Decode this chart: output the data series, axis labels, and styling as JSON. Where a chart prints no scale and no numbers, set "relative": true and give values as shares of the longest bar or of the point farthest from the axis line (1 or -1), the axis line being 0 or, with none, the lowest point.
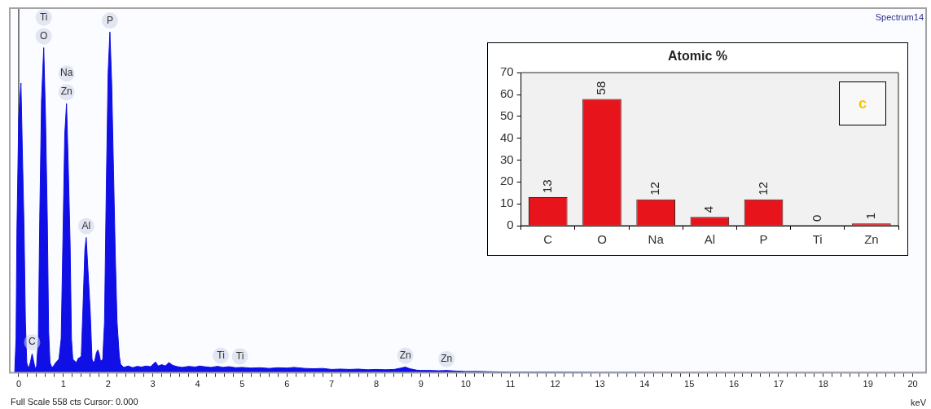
{
  "chart_data": [
    {
      "type": "area",
      "title": "Spectrum14",
      "xlabel": "keV",
      "relative": true,
      "tick_labels": "x",
      "x": [
        -0.09,
        -0.06,
        -0.04,
        0.0,
        0.05,
        0.09,
        0.12,
        0.15,
        0.18,
        0.22,
        0.26,
        0.3,
        0.34,
        0.37,
        0.4,
        0.44,
        0.47,
        0.51,
        0.56,
        0.6,
        0.64,
        0.67,
        0.7,
        0.74,
        0.78,
        0.83,
        0.87,
        0.9,
        0.95,
        0.99,
        1.03,
        1.07,
        1.11,
        1.15,
        1.18,
        1.21,
        1.25,
        1.29,
        1.33,
        1.37,
        1.4,
        1.44,
        1.48,
        1.51,
        1.55,
        1.6,
        1.64,
        1.67,
        1.7,
        1.74,
        1.77,
        1.8,
        1.83,
        1.86,
        1.88,
        1.92,
        1.96,
        2.0,
        2.04,
        2.08,
        2.12,
        2.16,
        2.2,
        2.25,
        2.28,
        2.35,
        2.45,
        2.55,
        2.65,
        2.75,
        2.85,
        2.95,
        3.06,
        3.12,
        3.2,
        3.28,
        3.36,
        3.45,
        3.55,
        3.66,
        3.8,
        3.95,
        4.05,
        4.15,
        4.3,
        4.45,
        4.57,
        4.7,
        4.85,
        5.0,
        5.19,
        5.4,
        5.6,
        5.8,
        6.0,
        6.16,
        6.4,
        6.6,
        6.8,
        7.0,
        7.2,
        7.4,
        7.6,
        7.8,
        8.0,
        8.2,
        8.4,
        8.55,
        8.65,
        8.75,
        8.9,
        9.0,
        9.2,
        9.4,
        9.57,
        9.8,
        10.0,
        10.3,
        10.6,
        11.0,
        11.3,
        12,
        13,
        14,
        15,
        16,
        17,
        18,
        19,
        20,
        20.3
      ],
      "series": [
        {
          "color": "#0f0fe6",
          "values": [
            0,
            0.1,
            0.42,
            0.75,
            0.85,
            0.6,
            0.42,
            0.15,
            0.03,
            0.012,
            0.03,
            0.056,
            0.03,
            0.012,
            0.02,
            0.1,
            0.45,
            0.8,
            0.954,
            0.75,
            0.45,
            0.12,
            0.03,
            0.016,
            0.02,
            0.03,
            0.036,
            0.04,
            0.1,
            0.4,
            0.7,
            0.79,
            0.6,
            0.38,
            0.1,
            0.04,
            0.035,
            0.03,
            0.042,
            0.045,
            0.05,
            0.2,
            0.36,
            0.397,
            0.3,
            0.18,
            0.04,
            0.03,
            0.035,
            0.06,
            0.067,
            0.055,
            0.035,
            0.036,
            0.04,
            0.15,
            0.55,
            0.88,
            1,
            0.85,
            0.6,
            0.35,
            0.15,
            0.05,
            0.025,
            0.016,
            0.02,
            0.015,
            0.019,
            0.017,
            0.02,
            0.018,
            0.032,
            0.02,
            0.024,
            0.02,
            0.03,
            0.022,
            0.018,
            0.016,
            0.019,
            0.017,
            0.02,
            0.018,
            0.016,
            0.019,
            0.016,
            0.018,
            0.015,
            0.016,
            0.014,
            0.015,
            0.013,
            0.015,
            0.014,
            0.016,
            0.013,
            0.012,
            0.013,
            0.01,
            0.011,
            0.01,
            0.011,
            0.009,
            0.01,
            0.009,
            0.01,
            0.014,
            0.017,
            0.012,
            0.008,
            0.007,
            0.007,
            0.006,
            0.007,
            0.005,
            0.004,
            0.004,
            0.003,
            0.002,
            0.002,
            0.002,
            0.0015,
            0.0015,
            0.0012,
            0.001,
            0.001,
            0.001,
            0.001,
            0.001,
            0.001
          ]
        }
      ],
      "xlim": [
        -0.2,
        20.3
      ],
      "xticks": [
        0,
        {
          "value": 0.2,
          "label": null
        },
        {
          "value": 0.4,
          "label": null
        },
        {
          "value": 0.6,
          "label": null
        },
        {
          "value": 0.8,
          "label": null
        },
        1,
        {
          "value": 1.2,
          "label": null
        },
        {
          "value": 1.4,
          "label": null
        },
        {
          "value": 1.6,
          "label": null
        },
        {
          "value": 1.8,
          "label": null
        },
        2,
        {
          "value": 2.2,
          "label": null
        },
        {
          "value": 2.4,
          "label": null
        },
        {
          "value": 2.6,
          "label": null
        },
        {
          "value": 2.8,
          "label": null
        },
        3,
        {
          "value": 3.2,
          "label": null
        },
        {
          "value": 3.4,
          "label": null
        },
        {
          "value": 3.6,
          "label": null
        },
        {
          "value": 3.8,
          "label": null
        },
        4,
        {
          "value": 4.2,
          "label": null
        },
        {
          "value": 4.4,
          "label": null
        },
        {
          "value": 4.6,
          "label": null
        },
        {
          "value": 4.8,
          "label": null
        },
        5,
        {
          "value": 5.2,
          "label": null
        },
        {
          "value": 5.4,
          "label": null
        },
        {
          "value": 5.6,
          "label": null
        },
        {
          "value": 5.8,
          "label": null
        },
        6,
        {
          "value": 6.2,
          "label": null
        },
        {
          "value": 6.4,
          "label": null
        },
        {
          "value": 6.6,
          "label": null
        },
        {
          "value": 6.8,
          "label": null
        },
        7,
        {
          "value": 7.2,
          "label": null
        },
        {
          "value": 7.4,
          "label": null
        },
        {
          "value": 7.6,
          "label": null
        },
        {
          "value": 7.8,
          "label": null
        },
        8,
        {
          "value": 8.2,
          "label": null
        },
        {
          "value": 8.4,
          "label": null
        },
        {
          "value": 8.6,
          "label": null
        },
        {
          "value": 8.8,
          "label": null
        },
        9,
        {
          "value": 9.2,
          "label": null
        },
        {
          "value": 9.4,
          "label": null
        },
        {
          "value": 9.6,
          "label": null
        },
        {
          "value": 9.8,
          "label": null
        },
        10,
        {
          "value": 10.2,
          "label": null
        },
        {
          "value": 10.4,
          "label": null
        },
        {
          "value": 10.6,
          "label": null
        },
        {
          "value": 10.8,
          "label": null
        },
        11,
        {
          "value": 11.2,
          "label": null
        },
        {
          "value": 11.4,
          "label": null
        },
        {
          "value": 11.6,
          "label": null
        },
        {
          "value": 11.8,
          "label": null
        },
        12,
        {
          "value": 12.2,
          "label": null
        },
        {
          "value": 12.4,
          "label": null
        },
        {
          "value": 12.6,
          "label": null
        },
        {
          "value": 12.8,
          "label": null
        },
        13,
        {
          "value": 13.2,
          "label": null
        },
        {
          "value": 13.4,
          "label": null
        },
        {
          "value": 13.6,
          "label": null
        },
        {
          "value": 13.8,
          "label": null
        },
        14,
        {
          "value": 14.2,
          "label": null
        },
        {
          "value": 14.4,
          "label": null
        },
        {
          "value": 14.6,
          "label": null
        },
        {
          "value": 14.8,
          "label": null
        },
        15,
        {
          "value": 15.2,
          "label": null
        },
        {
          "value": 15.4,
          "label": null
        },
        {
          "value": 15.6,
          "label": null
        },
        {
          "value": 15.8,
          "label": null
        },
        16,
        {
          "value": 16.2,
          "label": null
        },
        {
          "value": 16.4,
          "label": null
        },
        {
          "value": 16.6,
          "label": null
        },
        {
          "value": 16.8,
          "label": null
        },
        17,
        {
          "value": 17.2,
          "label": null
        },
        {
          "value": 17.4,
          "label": null
        },
        {
          "value": 17.6,
          "label": null
        },
        {
          "value": 17.8,
          "label": null
        },
        18,
        {
          "value": 18.2,
          "label": null
        },
        {
          "value": 18.4,
          "label": null
        },
        {
          "value": 18.6,
          "label": null
        },
        {
          "value": 18.8,
          "label": null
        },
        19,
        {
          "value": 19.2,
          "label": null
        },
        {
          "value": 19.4,
          "label": null
        },
        {
          "value": 19.6,
          "label": null
        },
        {
          "value": 19.8,
          "label": null
        },
        20
      ],
      "ref_lines": [
        {
          "axis": "x",
          "value": 0,
          "color": "#000000"
        }
      ],
      "annotations": [
        {
          "text": "Ti",
          "x": 0.56,
          "y": 0.954
        },
        {
          "text": "O",
          "x": 0.56,
          "y": 0.954
        },
        {
          "text": "Na",
          "x": 1.07,
          "y": 0.79
        },
        {
          "text": "Zn",
          "x": 1.07,
          "y": 0.79
        },
        {
          "text": "Al",
          "x": 1.51,
          "y": 0.397
        },
        {
          "text": "P",
          "x": 2.04,
          "y": 1
        },
        {
          "text": "C",
          "x": 0.3,
          "y": 0.056
        },
        {
          "text": "Ti",
          "x": 4.52,
          "y": 0.017
        },
        {
          "text": "Ti",
          "x": 4.95,
          "y": 0.015
        },
        {
          "text": "Zn",
          "x": 8.65,
          "y": 0.017
        },
        {
          "text": "Zn",
          "x": 9.57,
          "y": 0.007
        },
        "Full Scale 558 cts Cursor: 0.000"
      ]
    },
    {
      "type": "bar",
      "title": "Atomic %",
      "categories": [
        "C",
        "O",
        "Na",
        "Al",
        "P",
        "Ti",
        "Zn"
      ],
      "values": [
        13,
        58,
        12,
        4,
        12,
        0,
        1
      ],
      "color": "#e8141c",
      "ylim": [
        0,
        70
      ],
      "yticks": [
        0,
        10,
        20,
        30,
        40,
        50,
        60,
        70
      ],
      "data_labels": true,
      "annotations": [
        "c"
      ]
    }
  ]
}
